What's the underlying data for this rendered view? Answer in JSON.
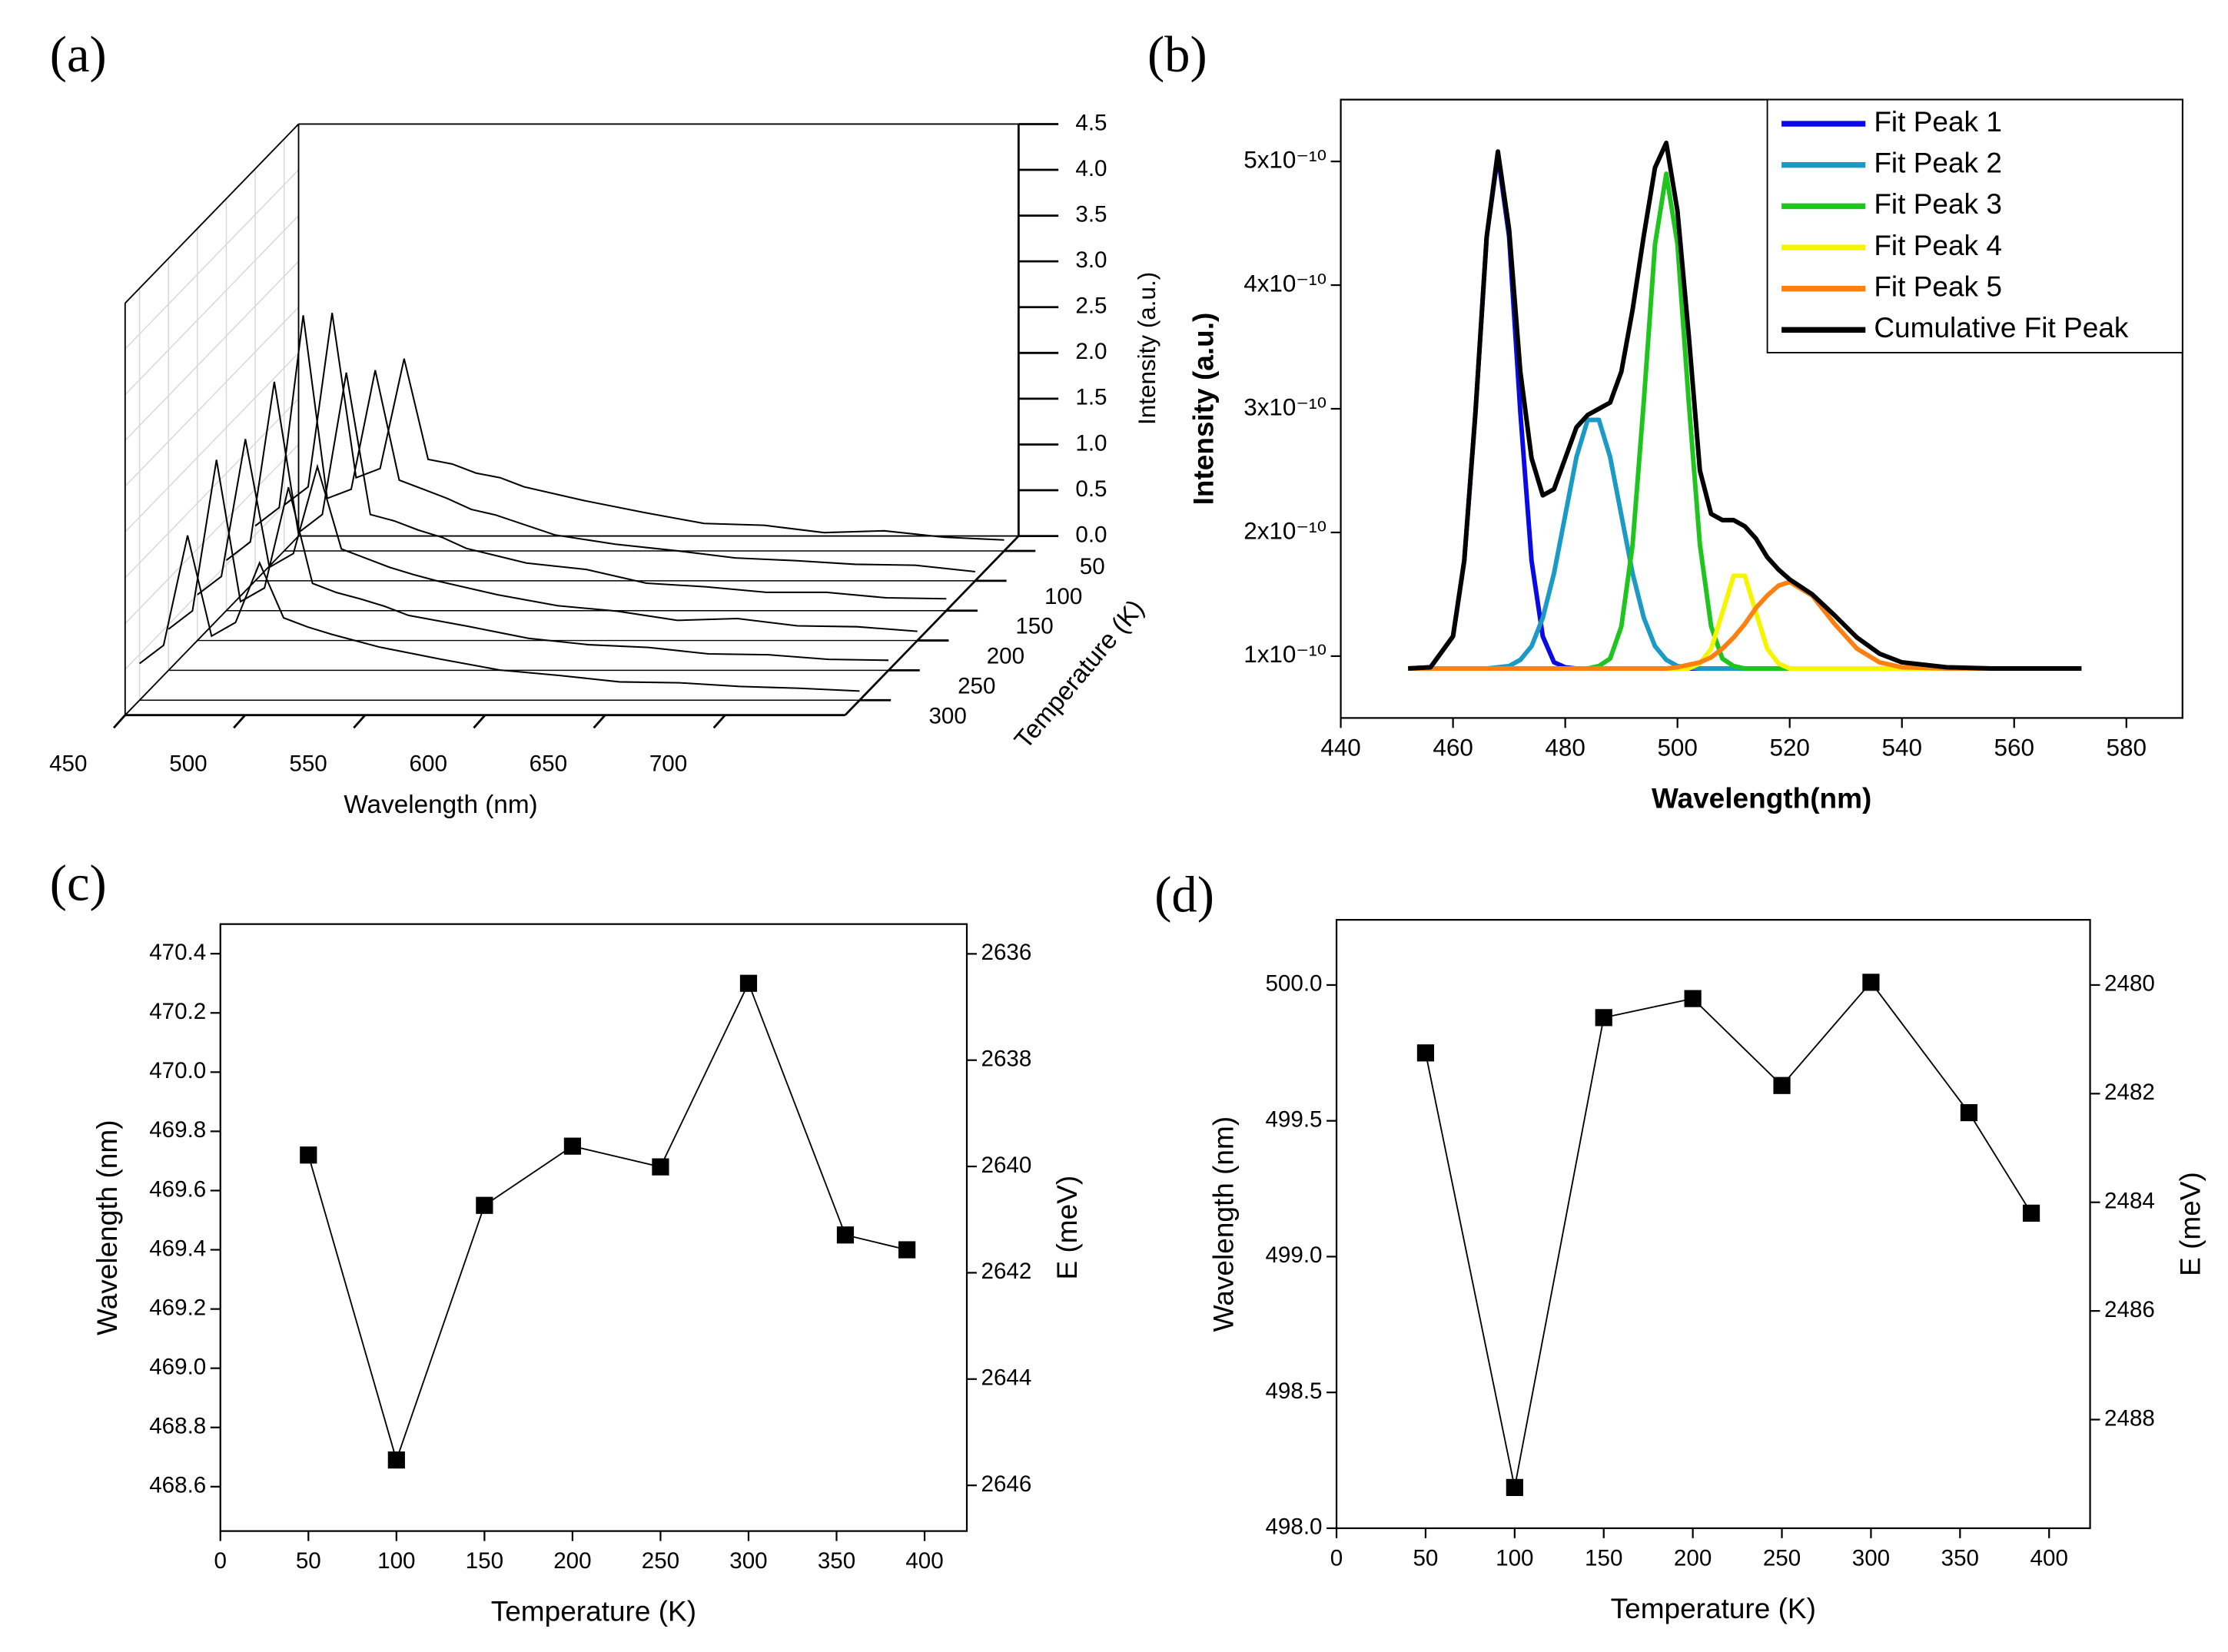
{
  "chart_data": [
    {
      "type": "waterfall3d",
      "panel": "(a)",
      "x_label": "Wavelength (nm)",
      "y_label": "Intensity (a.u.)",
      "z_label": "Temperature (K)",
      "x": [
        450,
        460,
        470,
        480,
        490,
        500,
        510,
        520,
        530,
        540,
        550,
        575,
        600,
        625,
        650,
        675,
        700,
        725,
        750
      ],
      "xlim": [
        450,
        750
      ],
      "xticks": [
        450,
        500,
        550,
        600,
        650,
        700
      ],
      "ylim": [
        0,
        4.5
      ],
      "yticks": [
        {
          "value": 0,
          "label": "0.0"
        },
        0.5,
        {
          "value": 1,
          "label": "1.0"
        },
        1.5,
        {
          "value": 2,
          "label": "2.0"
        },
        2.5,
        {
          "value": 3,
          "label": "3.0"
        },
        3.5,
        {
          "value": 4,
          "label": "4.0"
        },
        4.5
      ],
      "zlim": [
        25,
        325
      ],
      "zticks": [
        50,
        100,
        150,
        200,
        250,
        300
      ],
      "color": "#000000",
      "series": [
        {
          "z": 50,
          "values": [
            0.5,
            0.7,
            2.6,
            0.8,
            0.9,
            2.1,
            1.0,
            0.95,
            0.85,
            0.8,
            0.7,
            0.55,
            0.42,
            0.3,
            0.28,
            0.2,
            0.22,
            0.15,
            0.12
          ]
        },
        {
          "z": 100,
          "values": [
            0.6,
            0.8,
            2.9,
            0.9,
            1.0,
            2.3,
            1.1,
            1.0,
            0.9,
            0.78,
            0.72,
            0.5,
            0.4,
            0.33,
            0.25,
            0.22,
            0.18,
            0.17,
            0.1
          ]
        },
        {
          "z": 150,
          "values": [
            0.55,
            0.75,
            2.5,
            0.85,
            1.05,
            2.6,
            1.05,
            0.98,
            0.88,
            0.8,
            0.68,
            0.52,
            0.45,
            0.3,
            0.26,
            0.2,
            0.2,
            0.14,
            0.13
          ]
        },
        {
          "z": 200,
          "values": [
            0.5,
            0.7,
            2.2,
            0.8,
            0.95,
            1.9,
            1.0,
            0.9,
            0.8,
            0.72,
            0.65,
            0.5,
            0.38,
            0.32,
            0.22,
            0.24,
            0.16,
            0.15,
            0.1
          ]
        },
        {
          "z": 250,
          "values": [
            0.45,
            0.65,
            2.3,
            0.75,
            0.9,
            2.0,
            0.95,
            0.85,
            0.78,
            0.7,
            0.6,
            0.48,
            0.35,
            0.28,
            0.25,
            0.18,
            0.17,
            0.12,
            0.11
          ]
        },
        {
          "z": 300,
          "values": [
            0.4,
            0.6,
            1.8,
            0.7,
            0.85,
            1.5,
            0.9,
            0.8,
            0.72,
            0.65,
            0.58,
            0.45,
            0.33,
            0.27,
            0.2,
            0.19,
            0.15,
            0.13,
            0.1
          ]
        }
      ]
    },
    {
      "type": "line",
      "panel": "(b)",
      "x_label": "Wavelength(nm)",
      "y_label": "Intensity (a.u.)",
      "x": [
        452,
        456,
        460,
        462,
        464,
        466,
        468,
        470,
        472,
        474,
        476,
        478,
        480,
        482,
        484,
        486,
        488,
        490,
        492,
        494,
        496,
        498,
        500,
        502,
        504,
        506,
        508,
        510,
        512,
        514,
        516,
        518,
        520,
        524,
        528,
        532,
        536,
        540,
        548,
        556,
        564,
        572
      ],
      "xlim": [
        440,
        590
      ],
      "xticks": [
        440,
        460,
        480,
        500,
        520,
        540,
        560,
        580
      ],
      "ylim": [
        5e-11,
        5.5e-10
      ],
      "yticks": [
        {
          "value": 1e-10,
          "label": "1x10⁻¹⁰"
        },
        {
          "value": 2e-10,
          "label": "2x10⁻¹⁰"
        },
        {
          "value": 3e-10,
          "label": "3x10⁻¹⁰"
        },
        {
          "value": 4e-10,
          "label": "4x10⁻¹⁰"
        },
        {
          "value": 5e-10,
          "label": "5x10⁻¹⁰"
        }
      ],
      "legend": "upper right",
      "series": [
        {
          "name": "Fit Peak 1",
          "color": "#0a0ae6",
          "values": [
            9e-11,
            9.1e-11,
            1.16e-10,
            1.77e-10,
            2.97e-10,
            4.39e-10,
            5.05e-10,
            4.39e-10,
            2.97e-10,
            1.77e-10,
            1.16e-10,
            9.5e-11,
            9.1e-11,
            9e-11,
            9e-11,
            9e-11,
            9e-11,
            9e-11,
            9e-11,
            9e-11,
            9e-11,
            9e-11,
            9e-11,
            9e-11,
            9e-11,
            9e-11,
            9e-11,
            9e-11,
            9e-11,
            9e-11,
            9e-11,
            9e-11,
            9e-11,
            9e-11,
            9e-11,
            9e-11,
            9e-11,
            9e-11,
            9e-11,
            9e-11,
            9e-11,
            9e-11
          ]
        },
        {
          "name": "Fit Peak 2",
          "color": "#1b9ac6",
          "values": [
            9e-11,
            9e-11,
            9e-11,
            9e-11,
            9e-11,
            9e-11,
            9.1e-11,
            9.2e-11,
            9.7e-11,
            1.08e-10,
            1.31e-10,
            1.67e-10,
            2.14e-10,
            2.61e-10,
            2.91e-10,
            2.91e-10,
            2.61e-10,
            2.14e-10,
            1.67e-10,
            1.31e-10,
            1.08e-10,
            9.7e-11,
            9.2e-11,
            9.1e-11,
            9e-11,
            9e-11,
            9e-11,
            9e-11,
            9e-11,
            9e-11,
            9e-11,
            9e-11,
            9e-11,
            9e-11,
            9e-11,
            9e-11,
            9e-11,
            9e-11,
            9e-11,
            9e-11,
            9e-11,
            9e-11
          ]
        },
        {
          "name": "Fit Peak 3",
          "color": "#1fc41f",
          "values": [
            9e-11,
            9e-11,
            9e-11,
            9e-11,
            9e-11,
            9e-11,
            9e-11,
            9e-11,
            9e-11,
            9e-11,
            9e-11,
            9e-11,
            9e-11,
            9e-11,
            9e-11,
            9.2e-11,
            9.8e-11,
            1.24e-10,
            1.9e-10,
            3.06e-10,
            4.33e-10,
            4.9e-10,
            4.33e-10,
            3.06e-10,
            1.9e-10,
            1.24e-10,
            9.8e-11,
            9.2e-11,
            9e-11,
            9e-11,
            9e-11,
            9e-11,
            9e-11,
            9e-11,
            9e-11,
            9e-11,
            9e-11,
            9e-11,
            9e-11,
            9e-11,
            9e-11,
            9e-11
          ]
        },
        {
          "name": "Fit Peak 4",
          "color": "#f5f500",
          "values": [
            9e-11,
            9e-11,
            9e-11,
            9e-11,
            9e-11,
            9e-11,
            9e-11,
            9e-11,
            9e-11,
            9e-11,
            9e-11,
            9e-11,
            9e-11,
            9e-11,
            9e-11,
            9e-11,
            9e-11,
            9e-11,
            9e-11,
            9e-11,
            9e-11,
            9e-11,
            9e-11,
            9e-11,
            9.4e-11,
            1.06e-10,
            1.35e-10,
            1.65e-10,
            1.65e-10,
            1.35e-10,
            1.06e-10,
            9.4e-11,
            9e-11,
            9e-11,
            9e-11,
            9e-11,
            9e-11,
            9e-11,
            9e-11,
            9e-11,
            9e-11,
            9e-11
          ]
        },
        {
          "name": "Fit Peak 5",
          "color": "#ff7f10",
          "values": [
            9e-11,
            9e-11,
            9e-11,
            9e-11,
            9e-11,
            9e-11,
            9e-11,
            9e-11,
            9e-11,
            9e-11,
            9e-11,
            9e-11,
            9e-11,
            9e-11,
            9e-11,
            9e-11,
            9e-11,
            9e-11,
            9e-11,
            9e-11,
            9e-11,
            9e-11,
            9.1e-11,
            9.3e-11,
            9.5e-11,
            9.9e-11,
            1.06e-10,
            1.15e-10,
            1.26e-10,
            1.39e-10,
            1.49e-10,
            1.57e-10,
            1.6e-10,
            1.49e-10,
            1.26e-10,
            1.06e-10,
            9.5e-11,
            9.1e-11,
            9e-11,
            9e-11,
            9e-11,
            9e-11
          ]
        },
        {
          "name": "Cumulative Fit Peak",
          "color": "#000000",
          "values": [
            9e-11,
            9.1e-11,
            1.16e-10,
            1.77e-10,
            2.97e-10,
            4.39e-10,
            5.08e-10,
            4.45e-10,
            3.3e-10,
            2.6e-10,
            2.3e-10,
            2.35e-10,
            2.6e-10,
            2.85e-10,
            2.95e-10,
            3e-10,
            3.05e-10,
            3.3e-10,
            3.8e-10,
            4.4e-10,
            4.95e-10,
            5.15e-10,
            4.6e-10,
            3.6e-10,
            2.5e-10,
            2.15e-10,
            2.1e-10,
            2.1e-10,
            2.05e-10,
            1.95e-10,
            1.8e-10,
            1.7e-10,
            1.62e-10,
            1.5e-10,
            1.33e-10,
            1.15e-10,
            1.02e-10,
            9.5e-11,
            9.1e-11,
            9e-11,
            9e-11,
            9e-11
          ]
        }
      ]
    },
    {
      "type": "line_scatter",
      "panel": "(c)",
      "x_label": "Temperature (K)",
      "y_label": "Wavelength (nm)",
      "y2_label": "E (meV)",
      "x": [
        50,
        100,
        150,
        200,
        250,
        300,
        355,
        390
      ],
      "values": [
        469.72,
        468.69,
        469.55,
        469.75,
        469.68,
        470.3,
        469.45,
        469.4
      ],
      "color": "#000000",
      "xlim": [
        0,
        424
      ],
      "xticks": [
        0,
        50,
        100,
        150,
        200,
        250,
        300,
        350,
        400
      ],
      "ylim": [
        468.45,
        470.5
      ],
      "yticks": [
        468.6,
        468.8,
        {
          "value": 469,
          "label": "469.0"
        },
        469.2,
        469.4,
        469.6,
        469.8,
        {
          "value": 470,
          "label": "470.0"
        },
        470.2,
        470.4
      ],
      "y2lim": [
        2646.86,
        2635.44
      ],
      "y2ticks": [
        2636,
        2638,
        2640,
        2642,
        2644,
        2646
      ]
    },
    {
      "type": "line_scatter",
      "panel": "(d)",
      "x_label": "Temperature (K)",
      "y_label": "Wavelength (nm)",
      "y2_label": "E (meV)",
      "x": [
        50,
        100,
        150,
        200,
        250,
        300,
        355,
        390
      ],
      "values": [
        499.75,
        498.15,
        499.88,
        499.95,
        499.63,
        500.01,
        499.53,
        499.16
      ],
      "color": "#000000",
      "xlim": [
        0,
        423
      ],
      "xticks": [
        0,
        50,
        100,
        150,
        200,
        250,
        300,
        350,
        400
      ],
      "ylim": [
        498,
        500.24
      ],
      "yticks": [
        {
          "value": 498,
          "label": "498.0"
        },
        498.5,
        {
          "value": 499,
          "label": "499.0"
        },
        499.5,
        {
          "value": 500,
          "label": "500.0"
        }
      ],
      "y2lim": [
        2490,
        2478.8
      ],
      "y2ticks": [
        2480,
        2482,
        2484,
        2486,
        2488
      ]
    }
  ]
}
